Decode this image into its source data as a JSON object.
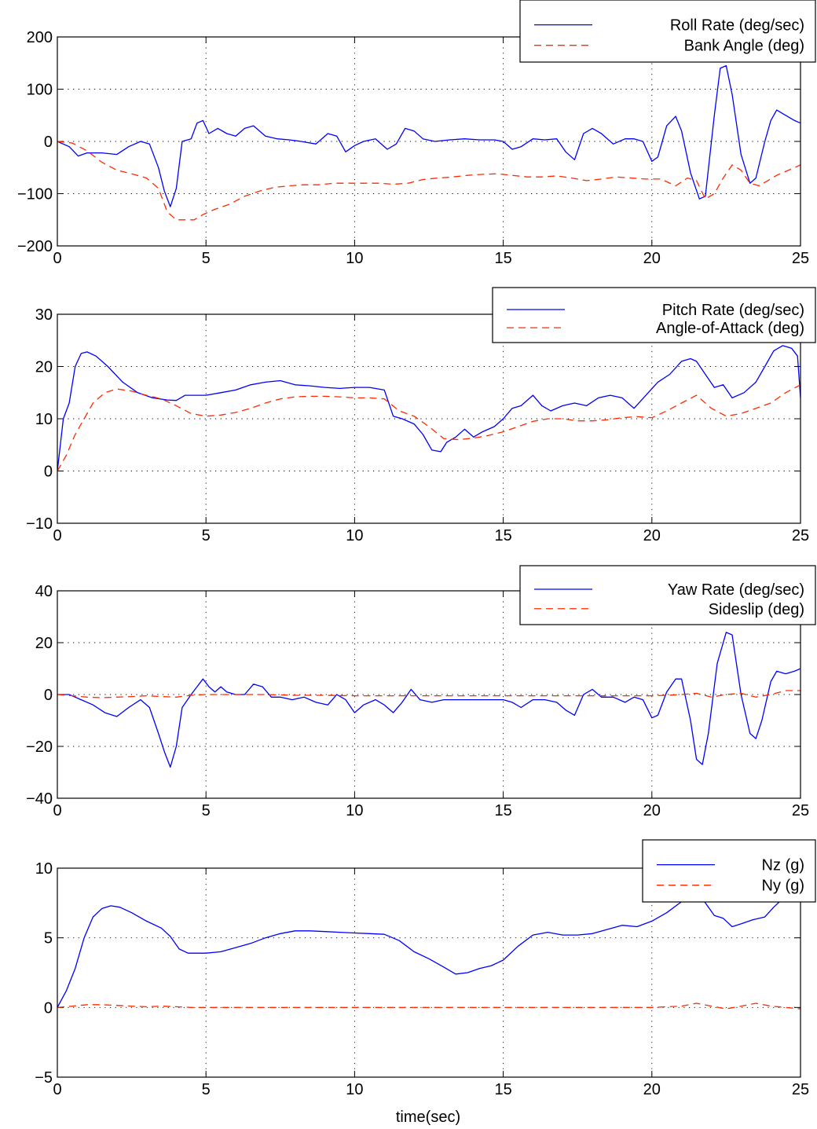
{
  "figure": {
    "xlabel": "time(sec)"
  },
  "chart_data": [
    {
      "type": "line",
      "title": "",
      "xlabel": "",
      "ylabel": "",
      "xlim": [
        0,
        25
      ],
      "ylim": [
        -200,
        200
      ],
      "xticks": [
        0,
        5,
        10,
        15,
        20,
        25
      ],
      "yticks": [
        -200,
        -100,
        0,
        100,
        200
      ],
      "grid": true,
      "legend_position": "top-right",
      "series": [
        {
          "name": "Roll Rate (deg/sec)",
          "color": "#0000ff",
          "style": "solid",
          "x": [
            0,
            0.4,
            0.7,
            1.0,
            1.5,
            2.0,
            2.4,
            2.8,
            3.1,
            3.4,
            3.6,
            3.8,
            4.0,
            4.2,
            4.5,
            4.7,
            4.9,
            5.1,
            5.4,
            5.7,
            6.0,
            6.3,
            6.6,
            7.0,
            7.4,
            7.8,
            8.2,
            8.7,
            9.1,
            9.4,
            9.7,
            10.0,
            10.3,
            10.7,
            11.1,
            11.4,
            11.7,
            12.0,
            12.3,
            12.7,
            13.2,
            13.7,
            14.2,
            14.7,
            15.0,
            15.3,
            15.6,
            16.0,
            16.4,
            16.8,
            17.1,
            17.4,
            17.7,
            18.0,
            18.3,
            18.7,
            19.1,
            19.4,
            19.7,
            20.0,
            20.2,
            20.5,
            20.8,
            21.0,
            21.3,
            21.6,
            21.8,
            22.1,
            22.3,
            22.5,
            22.7,
            23.0,
            23.3,
            23.5,
            23.8,
            24.0,
            24.2,
            24.5,
            24.8,
            25.0
          ],
          "y": [
            0,
            -10,
            -28,
            -22,
            -22,
            -25,
            -10,
            0,
            -5,
            -50,
            -95,
            -125,
            -90,
            0,
            5,
            35,
            40,
            15,
            25,
            15,
            10,
            25,
            30,
            10,
            5,
            3,
            0,
            -5,
            15,
            10,
            -20,
            -8,
            0,
            5,
            -15,
            -5,
            25,
            20,
            5,
            0,
            3,
            5,
            3,
            3,
            0,
            -15,
            -10,
            5,
            3,
            5,
            -20,
            -35,
            15,
            25,
            15,
            -5,
            5,
            5,
            0,
            -38,
            -30,
            30,
            48,
            20,
            -60,
            -110,
            -105,
            50,
            140,
            145,
            90,
            -25,
            -80,
            -70,
            0,
            40,
            60,
            50,
            40,
            35
          ]
        },
        {
          "name": "Bank Angle (deg)",
          "color": "#ff2a00",
          "style": "dashed",
          "x": [
            0,
            0.5,
            1.0,
            1.5,
            2.0,
            2.5,
            3.0,
            3.4,
            3.7,
            4.0,
            4.3,
            4.6,
            4.9,
            5.3,
            5.8,
            6.3,
            6.8,
            7.3,
            7.8,
            8.3,
            8.8,
            9.3,
            9.8,
            10.3,
            10.8,
            11.3,
            11.8,
            12.3,
            12.8,
            13.3,
            13.8,
            14.3,
            14.8,
            15.3,
            15.8,
            16.3,
            16.8,
            17.3,
            17.8,
            18.3,
            18.8,
            19.3,
            19.8,
            20.3,
            20.8,
            21.2,
            21.5,
            21.8,
            22.1,
            22.4,
            22.7,
            23.0,
            23.3,
            23.6,
            23.9,
            24.2,
            24.6,
            25.0
          ],
          "y": [
            0,
            -3,
            -18,
            -40,
            -55,
            -62,
            -70,
            -90,
            -135,
            -150,
            -150,
            -150,
            -140,
            -130,
            -120,
            -105,
            -95,
            -88,
            -85,
            -83,
            -83,
            -80,
            -80,
            -80,
            -80,
            -82,
            -80,
            -73,
            -70,
            -68,
            -65,
            -63,
            -62,
            -65,
            -68,
            -68,
            -66,
            -70,
            -75,
            -72,
            -68,
            -70,
            -72,
            -72,
            -85,
            -70,
            -75,
            -110,
            -100,
            -70,
            -45,
            -55,
            -80,
            -85,
            -75,
            -65,
            -55,
            -45
          ]
        }
      ]
    },
    {
      "type": "line",
      "title": "",
      "xlabel": "",
      "ylabel": "",
      "xlim": [
        0,
        25
      ],
      "ylim": [
        -10,
        30
      ],
      "xticks": [
        0,
        5,
        10,
        15,
        20,
        25
      ],
      "yticks": [
        -10,
        0,
        10,
        20,
        30
      ],
      "grid": true,
      "legend_position": "top-right",
      "series": [
        {
          "name": "Pitch Rate (deg/sec)",
          "color": "#0000ff",
          "style": "solid",
          "x": [
            0,
            0.2,
            0.4,
            0.6,
            0.8,
            1.0,
            1.3,
            1.7,
            2.2,
            2.7,
            3.2,
            3.7,
            4.0,
            4.3,
            4.7,
            5.0,
            5.5,
            6.0,
            6.5,
            7.0,
            7.5,
            8.0,
            8.5,
            9.0,
            9.5,
            10.0,
            10.5,
            11.0,
            11.3,
            11.6,
            12.0,
            12.3,
            12.6,
            12.9,
            13.1,
            13.4,
            13.7,
            14.0,
            14.3,
            14.7,
            15.0,
            15.3,
            15.6,
            16.0,
            16.3,
            16.6,
            17.0,
            17.4,
            17.8,
            18.2,
            18.6,
            19.0,
            19.4,
            19.8,
            20.2,
            20.6,
            21.0,
            21.3,
            21.5,
            21.8,
            22.1,
            22.4,
            22.7,
            23.1,
            23.5,
            23.8,
            24.1,
            24.4,
            24.7,
            24.9,
            25.0
          ],
          "y": [
            0,
            10,
            13,
            20,
            22.5,
            22.8,
            22,
            20,
            17,
            15,
            14,
            13.6,
            13.5,
            14.5,
            14.5,
            14.5,
            15,
            15.5,
            16.5,
            17,
            17.3,
            16.5,
            16.3,
            16,
            15.8,
            16,
            16,
            15.5,
            10.5,
            10,
            9,
            7,
            4,
            3.7,
            5.5,
            6.5,
            8,
            6.5,
            7.5,
            8.5,
            10,
            12,
            12.5,
            14.5,
            12.5,
            11.5,
            12.5,
            13,
            12.5,
            14,
            14.5,
            14,
            12,
            14.5,
            17,
            18.5,
            21,
            21.5,
            21,
            18.5,
            16,
            16.5,
            14,
            15,
            17,
            20,
            23,
            24,
            23.5,
            22,
            14
          ]
        },
        {
          "name": "Angle-of-Attack (deg)",
          "color": "#ff2a00",
          "style": "dashed",
          "x": [
            0,
            0.3,
            0.6,
            0.9,
            1.2,
            1.6,
            2.0,
            2.5,
            3.0,
            3.5,
            4.0,
            4.5,
            5.0,
            5.5,
            6.0,
            6.5,
            7.0,
            7.5,
            8.0,
            8.5,
            9.0,
            9.5,
            10.0,
            10.5,
            11.0,
            11.5,
            12.0,
            12.5,
            13.0,
            13.5,
            14.0,
            14.5,
            15.0,
            15.5,
            16.0,
            16.5,
            17.0,
            17.5,
            18.0,
            18.5,
            19.0,
            19.5,
            20.0,
            20.5,
            21.0,
            21.5,
            22.0,
            22.5,
            23.0,
            23.5,
            24.0,
            24.5,
            25.0
          ],
          "y": [
            0,
            3,
            7,
            10,
            13,
            15,
            15.7,
            15.3,
            14.5,
            13.8,
            12.5,
            11,
            10.5,
            10.7,
            11.2,
            12,
            13,
            13.8,
            14.2,
            14.3,
            14.3,
            14.2,
            14,
            14,
            13.8,
            11.5,
            10.5,
            8.5,
            6.2,
            6,
            6.3,
            6.8,
            7.5,
            8.5,
            9.5,
            10,
            10,
            9.6,
            9.6,
            9.8,
            10.2,
            10.4,
            10.2,
            11.5,
            13,
            14.5,
            12,
            10.5,
            11,
            12,
            13,
            15,
            16.5
          ]
        }
      ]
    },
    {
      "type": "line",
      "title": "",
      "xlabel": "",
      "ylabel": "",
      "xlim": [
        0,
        25
      ],
      "ylim": [
        -40,
        40
      ],
      "xticks": [
        0,
        5,
        10,
        15,
        20,
        25
      ],
      "yticks": [
        -40,
        -20,
        0,
        20,
        40
      ],
      "grid": true,
      "legend_position": "top-right",
      "series": [
        {
          "name": "Yaw Rate (deg/sec)",
          "color": "#0000ff",
          "style": "solid",
          "x": [
            0,
            0.4,
            0.8,
            1.2,
            1.6,
            2.0,
            2.4,
            2.8,
            3.1,
            3.4,
            3.6,
            3.8,
            4.0,
            4.2,
            4.5,
            4.7,
            4.9,
            5.1,
            5.3,
            5.5,
            5.7,
            6.0,
            6.3,
            6.6,
            6.9,
            7.2,
            7.5,
            7.9,
            8.3,
            8.7,
            9.1,
            9.4,
            9.7,
            10.0,
            10.3,
            10.7,
            11.0,
            11.3,
            11.6,
            11.9,
            12.2,
            12.6,
            13.0,
            13.5,
            14.0,
            14.5,
            15.0,
            15.3,
            15.6,
            16.0,
            16.4,
            16.8,
            17.1,
            17.4,
            17.7,
            18.0,
            18.3,
            18.7,
            19.1,
            19.4,
            19.7,
            20.0,
            20.2,
            20.5,
            20.8,
            21.0,
            21.3,
            21.5,
            21.7,
            21.9,
            22.2,
            22.5,
            22.7,
            23.0,
            23.3,
            23.5,
            23.7,
            24.0,
            24.2,
            24.5,
            24.8,
            25.0
          ],
          "y": [
            0,
            0,
            -2,
            -4,
            -7,
            -8.5,
            -5,
            -2,
            -5,
            -15,
            -22,
            -28,
            -20,
            -5,
            0,
            3,
            6,
            3,
            1,
            3,
            1,
            0,
            0,
            4,
            3,
            -1,
            -1,
            -2,
            -1,
            -3,
            -4,
            0,
            -2,
            -7,
            -4,
            -2,
            -4,
            -7,
            -3,
            2,
            -2,
            -3,
            -2,
            -2,
            -2,
            -2,
            -2,
            -3,
            -5,
            -2,
            -2,
            -3,
            -6,
            -8,
            0,
            2,
            -1,
            -1,
            -3,
            -1,
            -2,
            -9,
            -8,
            1,
            6,
            6,
            -10,
            -25,
            -27,
            -15,
            12,
            24,
            23,
            0,
            -15,
            -17,
            -10,
            5,
            9,
            8,
            9,
            10
          ]
        },
        {
          "name": "Sideslip (deg)",
          "color": "#ff2a00",
          "style": "dashed",
          "x": [
            0,
            0.5,
            1.0,
            1.5,
            2.0,
            2.5,
            3.0,
            3.5,
            4.0,
            4.5,
            5.0,
            5.5,
            6.0,
            7.0,
            8.0,
            9.0,
            10.0,
            11.0,
            12.0,
            13.0,
            14.0,
            15.0,
            16.0,
            17.0,
            18.0,
            19.0,
            20.0,
            20.5,
            21.0,
            21.5,
            22.0,
            22.5,
            23.0,
            23.5,
            24.0,
            24.5,
            25.0
          ],
          "y": [
            0,
            -0.5,
            -1,
            -1.2,
            -1,
            -0.8,
            -0.5,
            -0.8,
            -1,
            -0.3,
            0,
            0,
            0,
            0,
            -0.3,
            -0.3,
            -0.5,
            -0.5,
            -0.5,
            -0.5,
            -0.5,
            -0.5,
            -0.5,
            -0.5,
            -0.5,
            -0.5,
            -0.5,
            -0.3,
            0,
            0.5,
            -1,
            0,
            0.5,
            -1,
            0,
            1.5,
            1.5
          ]
        }
      ]
    },
    {
      "type": "line",
      "title": "",
      "xlabel": "time(sec)",
      "ylabel": "",
      "xlim": [
        0,
        25
      ],
      "ylim": [
        -5,
        10
      ],
      "xticks": [
        0,
        5,
        10,
        15,
        20,
        25
      ],
      "yticks": [
        -5,
        0,
        5,
        10
      ],
      "grid": true,
      "legend_position": "top-right",
      "series": [
        {
          "name": "Nz (g)",
          "color": "#0000ff",
          "style": "solid",
          "x": [
            0,
            0.3,
            0.6,
            0.9,
            1.2,
            1.5,
            1.8,
            2.1,
            2.5,
            3.0,
            3.5,
            3.8,
            4.1,
            4.4,
            4.7,
            5.0,
            5.5,
            6.0,
            6.5,
            7.0,
            7.5,
            8.0,
            8.5,
            9.0,
            9.5,
            10.0,
            10.5,
            11.0,
            11.5,
            12.0,
            12.5,
            13.0,
            13.4,
            13.8,
            14.2,
            14.6,
            15.0,
            15.5,
            16.0,
            16.5,
            17.0,
            17.5,
            18.0,
            18.5,
            19.0,
            19.5,
            20.0,
            20.5,
            21.0,
            21.3,
            21.5,
            21.8,
            22.1,
            22.4,
            22.7,
            23.0,
            23.4,
            23.8,
            24.1,
            24.4,
            24.7,
            24.9,
            25.0
          ],
          "y": [
            0,
            1.2,
            2.8,
            5,
            6.5,
            7.1,
            7.3,
            7.2,
            6.8,
            6.2,
            5.7,
            5.1,
            4.2,
            3.9,
            3.9,
            3.9,
            4.0,
            4.3,
            4.6,
            5.0,
            5.3,
            5.5,
            5.5,
            5.45,
            5.4,
            5.35,
            5.3,
            5.25,
            4.8,
            4.0,
            3.5,
            2.9,
            2.4,
            2.5,
            2.8,
            3.0,
            3.4,
            4.4,
            5.2,
            5.4,
            5.2,
            5.2,
            5.3,
            5.6,
            5.9,
            5.8,
            6.2,
            6.8,
            7.6,
            8.1,
            8.3,
            7.5,
            6.6,
            6.4,
            5.8,
            6.0,
            6.3,
            6.5,
            7.2,
            7.8,
            8.0,
            8.0,
            7.8
          ]
        },
        {
          "name": "Ny (g)",
          "color": "#ff2a00",
          "style": "dashed",
          "x": [
            0,
            0.5,
            1.0,
            1.5,
            2.0,
            2.5,
            3.0,
            3.5,
            4.0,
            4.5,
            5.0,
            6.0,
            7.0,
            8.0,
            9.0,
            10.0,
            11.0,
            12.0,
            13.0,
            14.0,
            15.0,
            16.0,
            17.0,
            18.0,
            19.0,
            20.0,
            20.5,
            21.0,
            21.5,
            22.0,
            22.5,
            23.0,
            23.5,
            24.0,
            24.5,
            25.0
          ],
          "y": [
            0,
            0.1,
            0.2,
            0.2,
            0.15,
            0.1,
            0.05,
            0.1,
            0.05,
            0,
            0,
            0,
            0,
            0,
            0,
            0,
            0,
            0,
            0,
            0,
            0,
            0,
            0,
            0,
            0,
            0,
            0.05,
            0.1,
            0.3,
            0.1,
            -0.1,
            0.1,
            0.3,
            0.1,
            0,
            -0.1
          ]
        }
      ]
    }
  ]
}
